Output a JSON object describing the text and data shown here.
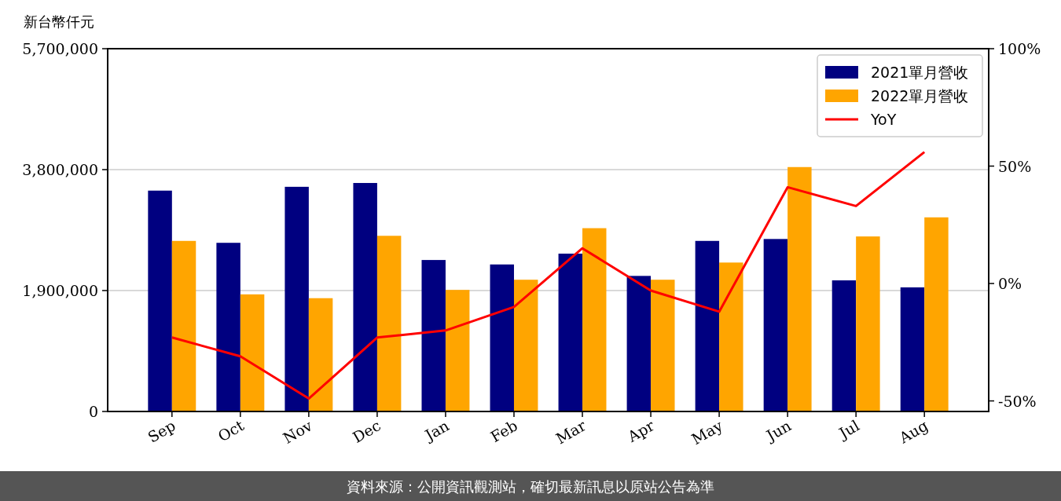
{
  "chart_data": {
    "type": "bar",
    "ylabel": "新台幣仟元",
    "categories": [
      "Sep",
      "Oct",
      "Nov",
      "Dec",
      "Jan",
      "Feb",
      "Mar",
      "Apr",
      "May",
      "Jun",
      "Jul",
      "Aug"
    ],
    "series": [
      {
        "name": "2021單月營收",
        "color": "#000080",
        "values": [
          3470000,
          2650000,
          3530000,
          3590000,
          2380000,
          2310000,
          2480000,
          2130000,
          2680000,
          2710000,
          2060000,
          1950000
        ]
      },
      {
        "name": "2022單月營收",
        "color": "#ffa500",
        "values": [
          2680000,
          1840000,
          1780000,
          2760000,
          1910000,
          2070000,
          2880000,
          2070000,
          2340000,
          3840000,
          2750000,
          3050000
        ]
      },
      {
        "name": "YoY",
        "type": "line",
        "axis": "y2",
        "color": "#ff0000",
        "values": [
          -23,
          -31,
          -49,
          -23,
          -20,
          -10,
          15,
          -3,
          -12,
          41,
          33,
          56
        ]
      }
    ],
    "ylim": [
      0,
      5700000
    ],
    "yticks": [
      {
        "value": 0,
        "label": "0"
      },
      {
        "value": 1900000,
        "label": "1,900,000"
      },
      {
        "value": 3800000,
        "label": "3,800,000"
      },
      {
        "value": 5700000,
        "label": "5,700,000"
      }
    ],
    "y2lim": [
      -54.5,
      100
    ],
    "y2ticks": [
      {
        "value": -50,
        "label": "-50%"
      },
      {
        "value": 0,
        "label": "0%"
      },
      {
        "value": 50,
        "label": "50%"
      },
      {
        "value": 100,
        "label": "100%"
      }
    ],
    "grid": "y",
    "legend": "top right",
    "annotations": [
      "資料來源：公開資訊觀測站，確切最新訊息以原站公告為準"
    ]
  }
}
